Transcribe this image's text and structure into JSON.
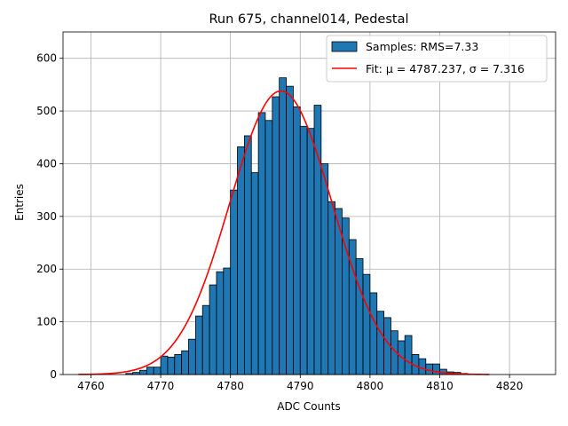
{
  "chart_data": {
    "type": "bar",
    "title": "Run 675, channel014, Pedestal",
    "xlabel": "ADC Counts",
    "ylabel": "Entries",
    "xlim": [
      4756,
      4826.6
    ],
    "ylim": [
      0,
      650
    ],
    "grid": true,
    "legend_position": "top-right",
    "x_ticks": [
      4760,
      4770,
      4780,
      4790,
      4800,
      4810,
      4820
    ],
    "y_ticks": [
      0,
      100,
      200,
      300,
      400,
      500,
      600
    ],
    "bar_color": "#1f77b4",
    "fit_color": "#ff0000",
    "series": [
      {
        "name": "Samples: RMS=7.33",
        "kind": "histogram",
        "bin_start": 4765,
        "bin_width": 1,
        "values": [
          2,
          4,
          8,
          14,
          14,
          35,
          33,
          38,
          45,
          67,
          111,
          131,
          170,
          195,
          202,
          350,
          432,
          453,
          383,
          497,
          482,
          527,
          563,
          547,
          508,
          471,
          467,
          511,
          400,
          328,
          315,
          297,
          256,
          220,
          190,
          155,
          120,
          108,
          83,
          64,
          74,
          38,
          30,
          20,
          20,
          10,
          5,
          4,
          2,
          1
        ]
      },
      {
        "name": "Fit: μ = 4787.237, σ = 7.316",
        "kind": "gaussian",
        "mu": 4787.237,
        "sigma": 7.316,
        "amplitude": 538,
        "x_range": [
          4758.2,
          4817.1
        ]
      }
    ]
  }
}
